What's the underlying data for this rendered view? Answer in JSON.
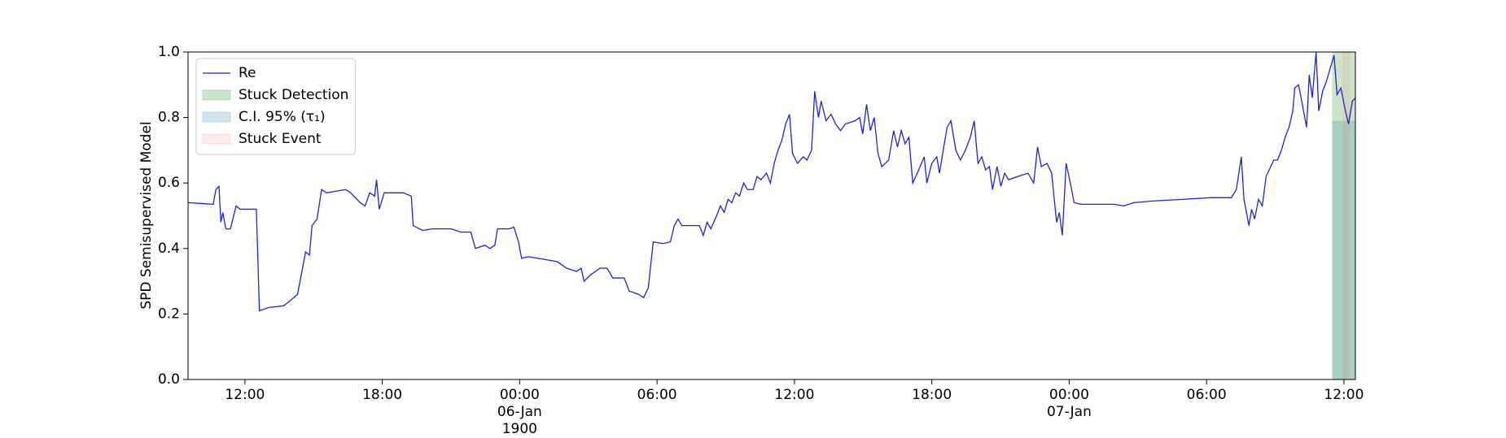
{
  "chart_data": {
    "type": "line",
    "ylabel": "SPD Semisupervised Model",
    "xlim": [
      "1900-01-05T09:31",
      "1900-01-07T12:30"
    ],
    "xticks": [
      {
        "value": "1900-01-05T12:00",
        "label": "12:00"
      },
      {
        "value": "1900-01-05T18:00",
        "label": "18:00"
      },
      {
        "value": "1900-01-06T00:00",
        "label": "00:00\n06-Jan\n1900"
      },
      {
        "value": "1900-01-06T06:00",
        "label": "06:00"
      },
      {
        "value": "1900-01-06T12:00",
        "label": "12:00"
      },
      {
        "value": "1900-01-06T18:00",
        "label": "18:00"
      },
      {
        "value": "1900-01-07T00:00",
        "label": "00:00\n07-Jan"
      },
      {
        "value": "1900-01-07T06:00",
        "label": "06:00"
      },
      {
        "value": "1900-01-07T12:00",
        "label": "12:00"
      }
    ],
    "ylim": [
      0,
      1
    ],
    "yticks": [
      {
        "value": 0,
        "label": "0.0"
      },
      0.2,
      0.4,
      0.6,
      0.8,
      {
        "value": 1,
        "label": "1.0"
      }
    ],
    "legend": "upper left",
    "x": [
      "1900-01-05T09:32",
      "1900-01-05T10:37",
      "1900-01-05T10:44",
      "1900-01-05T10:52",
      "1900-01-05T10:57",
      "1900-01-05T11:02",
      "1900-01-05T11:10",
      "1900-01-05T11:22",
      "1900-01-05T11:37",
      "1900-01-05T11:47",
      "1900-01-05T12:30",
      "1900-01-05T12:38",
      "1900-01-05T13:03",
      "1900-01-05T13:41",
      "1900-01-05T13:53",
      "1900-01-05T14:18",
      "1900-01-05T14:39",
      "1900-01-05T14:49",
      "1900-01-05T14:56",
      "1900-01-05T15:09",
      "1900-01-05T15:21",
      "1900-01-05T15:34",
      "1900-01-05T15:59",
      "1900-01-05T16:24",
      "1900-01-05T16:37",
      "1900-01-05T17:02",
      "1900-01-05T17:15",
      "1900-01-05T17:27",
      "1900-01-05T17:40",
      "1900-01-05T17:45",
      "1900-01-05T17:52",
      "1900-01-05T18:05",
      "1900-01-05T18:55",
      "1900-01-05T19:16",
      "1900-01-05T19:21",
      "1900-01-05T19:46",
      "1900-01-05T20:11",
      "1900-01-05T21:01",
      "1900-01-05T21:26",
      "1900-01-05T21:52",
      "1900-01-05T22:04",
      "1900-01-05T22:29",
      "1900-01-05T22:42",
      "1900-01-05T22:55",
      "1900-01-05T23:02",
      "1900-01-05T23:32",
      "1900-01-05T23:45",
      "1900-01-05T23:57",
      "1900-01-06T00:05",
      "1900-01-06T00:23",
      "1900-01-06T00:48",
      "1900-01-06T01:38",
      "1900-01-06T02:03",
      "1900-01-06T02:29",
      "1900-01-06T02:41",
      "1900-01-06T02:49",
      "1900-01-06T03:06",
      "1900-01-06T03:31",
      "1900-01-06T03:49",
      "1900-01-06T04:04",
      "1900-01-06T04:34",
      "1900-01-06T04:47",
      "1900-01-06T05:12",
      "1900-01-06T05:25",
      "1900-01-06T05:37",
      "1900-01-06T05:50",
      "1900-01-06T06:15",
      "1900-01-06T06:35",
      "1900-01-06T06:45",
      "1900-01-06T06:55",
      "1900-01-06T07:05",
      "1900-01-06T07:51",
      "1900-01-06T08:01",
      "1900-01-06T08:11",
      "1900-01-06T08:21",
      "1900-01-06T08:36",
      "1900-01-06T08:46",
      "1900-01-06T08:56",
      "1900-01-06T09:06",
      "1900-01-06T09:16",
      "1900-01-06T09:26",
      "1900-01-06T09:36",
      "1900-01-06T09:47",
      "1900-01-06T09:57",
      "1900-01-06T10:12",
      "1900-01-06T10:22",
      "1900-01-06T10:32",
      "1900-01-06T10:47",
      "1900-01-06T10:57",
      "1900-01-06T11:07",
      "1900-01-06T11:17",
      "1900-01-06T11:27",
      "1900-01-06T11:37",
      "1900-01-06T11:47",
      "1900-01-06T11:55",
      "1900-01-06T12:08",
      "1900-01-06T12:23",
      "1900-01-06T12:33",
      "1900-01-06T12:45",
      "1900-01-06T12:53",
      "1900-01-06T13:03",
      "1900-01-06T13:10",
      "1900-01-06T13:23",
      "1900-01-06T13:36",
      "1900-01-06T13:48",
      "1900-01-06T14:01",
      "1900-01-06T14:13",
      "1900-01-06T14:39",
      "1900-01-06T14:51",
      "1900-01-06T14:59",
      "1900-01-06T15:09",
      "1900-01-06T15:19",
      "1900-01-06T15:29",
      "1900-01-06T15:39",
      "1900-01-06T15:49",
      "1900-01-06T16:07",
      "1900-01-06T16:20",
      "1900-01-06T16:30",
      "1900-01-06T16:40",
      "1900-01-06T16:50",
      "1900-01-06T17:00",
      "1900-01-06T17:10",
      "1900-01-06T17:22",
      "1900-01-06T17:40",
      "1900-01-06T17:47",
      "1900-01-06T18:00",
      "1900-01-06T18:13",
      "1900-01-06T18:20",
      "1900-01-06T18:30",
      "1900-01-06T18:40",
      "1900-01-06T18:50",
      "1900-01-06T19:03",
      "1900-01-06T19:15",
      "1900-01-06T19:28",
      "1900-01-06T19:41",
      "1900-01-06T19:51",
      "1900-01-06T20:01",
      "1900-01-06T20:11",
      "1900-01-06T20:21",
      "1900-01-06T20:31",
      "1900-01-06T20:39",
      "1900-01-06T20:51",
      "1900-01-06T21:01",
      "1900-01-06T21:11",
      "1900-01-06T21:21",
      "1900-01-06T21:46",
      "1900-01-06T22:12",
      "1900-01-06T22:27",
      "1900-01-06T22:37",
      "1900-01-06T22:47",
      "1900-01-06T23:02",
      "1900-01-06T23:14",
      "1900-01-06T23:27",
      "1900-01-06T23:34",
      "1900-01-06T23:42",
      "1900-01-06T23:52",
      "1900-01-07T00:03",
      "1900-01-07T00:13",
      "1900-01-07T00:30",
      "1900-01-07T01:58",
      "1900-01-07T02:23",
      "1900-01-07T02:49",
      "1900-01-07T03:39",
      "1900-01-07T04:55",
      "1900-01-07T06:10",
      "1900-01-07T07:05",
      "1900-01-07T07:18",
      "1900-01-07T07:31",
      "1900-01-07T07:38",
      "1900-01-07T07:51",
      "1900-01-07T07:58",
      "1900-01-07T08:06",
      "1900-01-07T08:16",
      "1900-01-07T08:26",
      "1900-01-07T08:36",
      "1900-01-07T08:56",
      "1900-01-07T09:06",
      "1900-01-07T09:16",
      "1900-01-07T09:26",
      "1900-01-07T09:36",
      "1900-01-07T09:46",
      "1900-01-07T09:51",
      "1900-01-07T10:01",
      "1900-01-07T10:11",
      "1900-01-07T10:22",
      "1900-01-07T10:29",
      "1900-01-07T10:37",
      "1900-01-07T10:47",
      "1900-01-07T10:54",
      "1900-01-07T11:04",
      "1900-01-07T11:14",
      "1900-01-07T11:24",
      "1900-01-07T11:34",
      "1900-01-07T11:42",
      "1900-01-07T11:52",
      "1900-01-07T12:02",
      "1900-01-07T12:12",
      "1900-01-07T12:22",
      "1900-01-07T12:30"
    ],
    "series": [
      {
        "name": "Re",
        "color": "#2222cc",
        "values": [
          0.54,
          0.535,
          0.58,
          0.59,
          0.48,
          0.51,
          0.46,
          0.46,
          0.53,
          0.52,
          0.52,
          0.21,
          0.22,
          0.225,
          0.235,
          0.26,
          0.39,
          0.38,
          0.47,
          0.49,
          0.58,
          0.57,
          0.575,
          0.58,
          0.57,
          0.54,
          0.53,
          0.57,
          0.56,
          0.61,
          0.52,
          0.57,
          0.57,
          0.56,
          0.47,
          0.455,
          0.46,
          0.46,
          0.45,
          0.45,
          0.4,
          0.41,
          0.4,
          0.41,
          0.46,
          0.46,
          0.465,
          0.42,
          0.37,
          0.375,
          0.37,
          0.36,
          0.34,
          0.33,
          0.34,
          0.3,
          0.32,
          0.34,
          0.34,
          0.31,
          0.31,
          0.27,
          0.26,
          0.25,
          0.28,
          0.42,
          0.415,
          0.42,
          0.47,
          0.49,
          0.47,
          0.47,
          0.44,
          0.48,
          0.46,
          0.5,
          0.53,
          0.51,
          0.55,
          0.54,
          0.57,
          0.56,
          0.6,
          0.58,
          0.58,
          0.62,
          0.61,
          0.63,
          0.6,
          0.66,
          0.7,
          0.73,
          0.78,
          0.81,
          0.69,
          0.66,
          0.68,
          0.67,
          0.7,
          0.88,
          0.8,
          0.85,
          0.79,
          0.81,
          0.78,
          0.76,
          0.78,
          0.79,
          0.8,
          0.75,
          0.84,
          0.76,
          0.8,
          0.69,
          0.65,
          0.67,
          0.76,
          0.71,
          0.76,
          0.72,
          0.74,
          0.6,
          0.63,
          0.68,
          0.6,
          0.66,
          0.68,
          0.63,
          0.7,
          0.77,
          0.79,
          0.7,
          0.67,
          0.7,
          0.74,
          0.79,
          0.66,
          0.68,
          0.64,
          0.65,
          0.58,
          0.65,
          0.59,
          0.63,
          0.61,
          0.62,
          0.63,
          0.6,
          0.71,
          0.65,
          0.66,
          0.63,
          0.48,
          0.51,
          0.44,
          0.66,
          0.6,
          0.54,
          0.535,
          0.535,
          0.53,
          0.54,
          0.545,
          0.55,
          0.555,
          0.555,
          0.58,
          0.68,
          0.55,
          0.47,
          0.52,
          0.49,
          0.55,
          0.53,
          0.62,
          0.67,
          0.67,
          0.7,
          0.74,
          0.77,
          0.82,
          0.89,
          0.9,
          0.84,
          0.77,
          0.93,
          0.86,
          1.0,
          0.82,
          0.88,
          0.91,
          0.95,
          0.99,
          0.87,
          0.89,
          0.83,
          0.78,
          0.85,
          0.86
        ]
      }
    ],
    "spans": [
      {
        "name": "Stuck Detection",
        "color": "#2ca02c",
        "alpha": 0.25,
        "x": [
          "1900-01-07T11:29",
          "1900-01-07T12:30"
        ],
        "y": [
          0,
          1
        ]
      },
      {
        "name": "C.I. 95% (τ₁)",
        "color": "#1f77b4",
        "alpha": 0.2,
        "x": [
          "1900-01-07T11:29",
          "1900-01-07T12:30"
        ],
        "y": [
          0,
          0.79
        ]
      },
      {
        "name": "Stuck Event",
        "color": "#ff6b6b",
        "alpha": 0.15,
        "x": [
          "1900-01-07T11:57",
          "1900-01-07T12:17"
        ],
        "y": [
          0,
          1
        ]
      }
    ]
  }
}
